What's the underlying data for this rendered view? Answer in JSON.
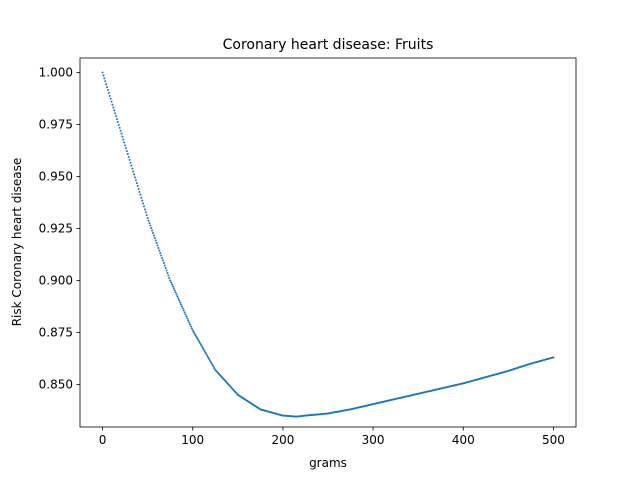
{
  "chart_data": {
    "type": "scatter",
    "title": "Coronary heart disease: Fruits",
    "xlabel": "grams",
    "ylabel": "Risk Coronary heart disease",
    "xlim": [
      -25,
      525
    ],
    "ylim": [
      0.8295,
      1.007
    ],
    "x_ticks": [
      0,
      100,
      200,
      300,
      400,
      500
    ],
    "x_tick_labels": [
      "0",
      "100",
      "200",
      "300",
      "400",
      "500"
    ],
    "y_ticks": [
      0.85,
      0.875,
      0.9,
      0.925,
      0.95,
      0.975,
      1.0
    ],
    "y_tick_labels": [
      "0.850",
      "0.875",
      "0.900",
      "0.925",
      "0.950",
      "0.975",
      "1.000"
    ],
    "grid": false,
    "series": [
      {
        "color": "#1f77b4",
        "x": [
          0,
          25,
          50,
          75,
          100,
          125,
          150,
          175,
          200,
          215,
          225,
          250,
          275,
          300,
          325,
          350,
          375,
          400,
          425,
          450,
          475,
          500
        ],
        "y": [
          1.0,
          0.965,
          0.93,
          0.9,
          0.876,
          0.857,
          0.845,
          0.838,
          0.835,
          0.8345,
          0.835,
          0.836,
          0.838,
          0.8405,
          0.843,
          0.8455,
          0.848,
          0.8505,
          0.8535,
          0.8565,
          0.86,
          0.863
        ]
      }
    ]
  }
}
